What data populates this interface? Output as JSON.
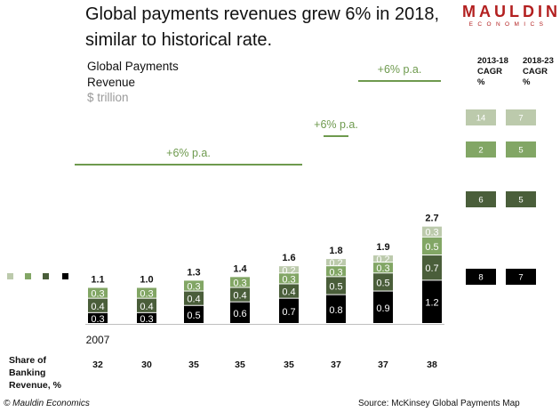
{
  "header": {
    "headline_line1": "Global payments revenues grew 6% in 2018,",
    "headline_line2": "similar to historical rate.",
    "logo_main": "MAULDIN",
    "logo_sub": "ECONOMICS"
  },
  "footer": {
    "copyright": "© Mauldin Economics",
    "source": "Source: McKinsey Global Payments Map"
  },
  "colors": {
    "seg1": "#000000",
    "seg2": "#4a5e3a",
    "seg3": "#82a665",
    "seg4": "#bccaac",
    "growth_line": "#6e9a4e",
    "growth_text": "#6e9a4e",
    "unit_text": "#9a9a9a"
  },
  "chart_data": {
    "type": "bar",
    "stacked": true,
    "title": "Global Payments Revenue",
    "unit": "$ trillion",
    "categories": [
      "2007",
      "",
      "",
      "",
      "",
      "",
      "",
      ""
    ],
    "series": [
      {
        "values": [
          0.3,
          0.3,
          0.5,
          0.6,
          0.7,
          0.8,
          0.9,
          1.2
        ],
        "cagr_2013_18": "8",
        "cagr_2018_23": "7"
      },
      {
        "values": [
          0.4,
          0.4,
          0.4,
          0.4,
          0.4,
          0.5,
          0.5,
          0.7
        ],
        "cagr_2013_18": "6",
        "cagr_2018_23": "5"
      },
      {
        "values": [
          0.3,
          0.3,
          0.3,
          0.3,
          0.3,
          0.3,
          0.3,
          0.5
        ],
        "cagr_2013_18": "2",
        "cagr_2018_23": "5"
      },
      {
        "values": [
          null,
          null,
          null,
          null,
          0.2,
          0.2,
          0.2,
          0.3
        ],
        "cagr_2013_18": "14",
        "cagr_2018_23": "7"
      }
    ],
    "totals": [
      "1.1",
      "1.0",
      "1.3",
      "1.4",
      "1.6",
      "1.8",
      "1.9",
      "2.7"
    ],
    "growth_annotations": [
      {
        "label": "+6% p.a.",
        "from_index": 0,
        "to_index": 4
      },
      {
        "label": "+6% p.a.",
        "from_index": 5,
        "to_index": 6
      },
      {
        "label": "+6% p.a.",
        "from_index": 6,
        "to_index": 7
      }
    ],
    "share_of_banking": {
      "label_lines": [
        "Share of",
        "Banking",
        "Revenue, %"
      ],
      "values": [
        "32",
        "30",
        "35",
        "35",
        "35",
        "37",
        "37",
        "38"
      ]
    },
    "cagr_headers": [
      {
        "lines": [
          "2013-18",
          "CAGR",
          "%"
        ]
      },
      {
        "lines": [
          "2018-23",
          "CAGR",
          "%"
        ]
      }
    ]
  }
}
